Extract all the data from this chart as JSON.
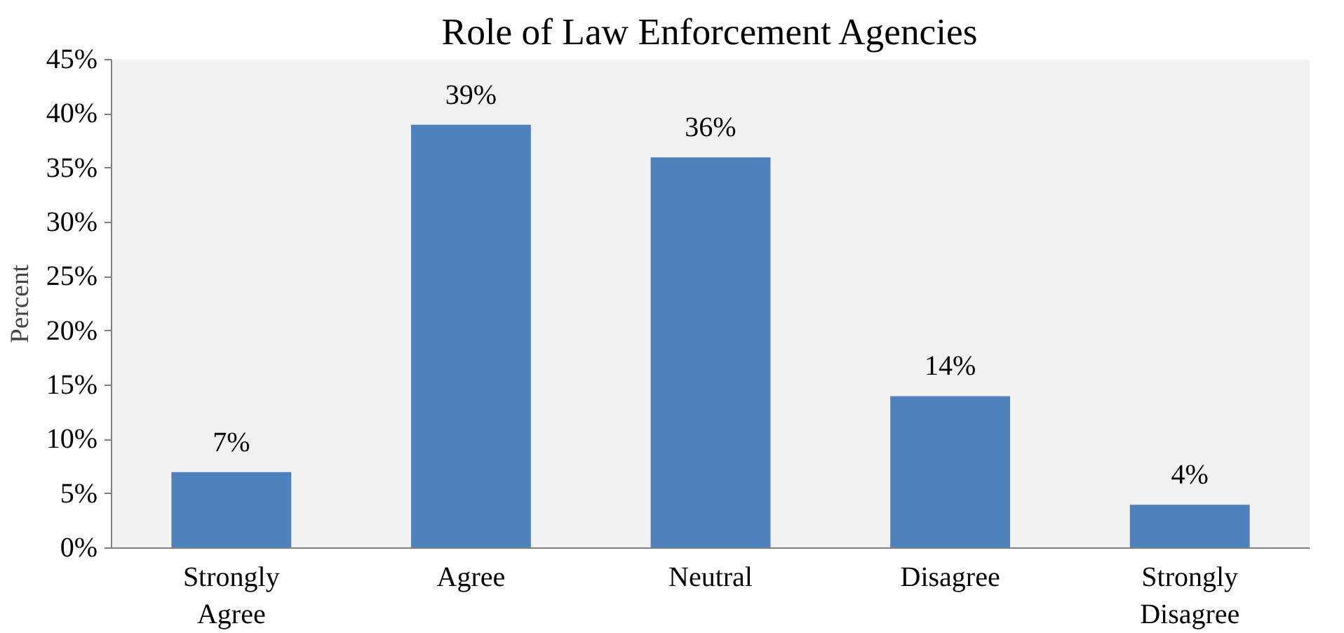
{
  "chart_data": {
    "type": "bar",
    "title": "Role of Law Enforcement Agencies",
    "ylabel": "Percent",
    "categories": [
      "Strongly Agree",
      "Agree",
      "Neutral",
      "Disagree",
      "Strongly Disagree"
    ],
    "values": [
      7,
      39,
      36,
      14,
      4
    ],
    "color": "#4f81bd",
    "ylim": [
      0,
      45
    ],
    "yticks": [
      {
        "value": 0,
        "label": "0%"
      },
      {
        "value": 5,
        "label": "5%"
      },
      {
        "value": 10,
        "label": "10%"
      },
      {
        "value": 15,
        "label": "15%"
      },
      {
        "value": 20,
        "label": "20%"
      },
      {
        "value": 25,
        "label": "25%"
      },
      {
        "value": 30,
        "label": "30%"
      },
      {
        "value": 35,
        "label": "35%"
      },
      {
        "value": 40,
        "label": "40%"
      },
      {
        "value": 45,
        "label": "45%"
      }
    ],
    "value_labels": [
      "7%",
      "39%",
      "36%",
      "14%",
      "4%"
    ],
    "grid": false
  }
}
